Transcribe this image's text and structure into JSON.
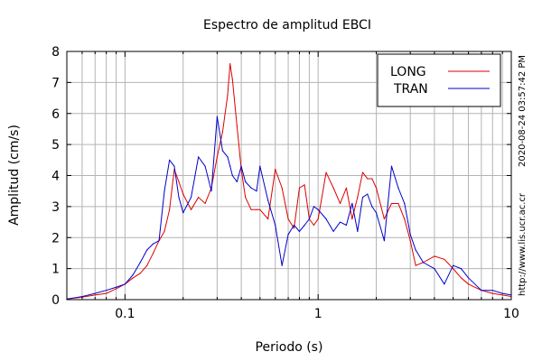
{
  "chart_data": {
    "type": "line",
    "title": "Espectro de amplitud EBCI",
    "xlabel": "Periodo (s)",
    "ylabel": "Amplitud (cm/s)",
    "x_scale": "log",
    "xlim": [
      0.05,
      10
    ],
    "ylim": [
      0,
      8
    ],
    "x_ticks": [
      {
        "value": 0.1,
        "label": "0.1"
      },
      {
        "value": 1,
        "label": "1"
      },
      {
        "value": 10,
        "label": "10"
      }
    ],
    "y_ticks": [
      {
        "value": 0,
        "label": "0"
      },
      {
        "value": 1,
        "label": "1"
      },
      {
        "value": 2,
        "label": "2"
      },
      {
        "value": 3,
        "label": "3"
      },
      {
        "value": 4,
        "label": "4"
      },
      {
        "value": 5,
        "label": "5"
      },
      {
        "value": 6,
        "label": "6"
      },
      {
        "value": 7,
        "label": "7"
      },
      {
        "value": 8,
        "label": "8"
      }
    ],
    "grid": true,
    "legend": "top-right",
    "series": [
      {
        "name": "LONG",
        "color": "#dd0000",
        "points": [
          [
            0.05,
            0.02
          ],
          [
            0.06,
            0.08
          ],
          [
            0.07,
            0.15
          ],
          [
            0.08,
            0.2
          ],
          [
            0.09,
            0.35
          ],
          [
            0.1,
            0.5
          ],
          [
            0.11,
            0.7
          ],
          [
            0.12,
            0.85
          ],
          [
            0.13,
            1.1
          ],
          [
            0.14,
            1.5
          ],
          [
            0.15,
            1.9
          ],
          [
            0.16,
            2.2
          ],
          [
            0.17,
            2.9
          ],
          [
            0.18,
            4.2
          ],
          [
            0.19,
            3.8
          ],
          [
            0.2,
            3.4
          ],
          [
            0.22,
            2.9
          ],
          [
            0.24,
            3.3
          ],
          [
            0.26,
            3.1
          ],
          [
            0.28,
            3.6
          ],
          [
            0.3,
            4.6
          ],
          [
            0.32,
            5.4
          ],
          [
            0.34,
            6.6
          ],
          [
            0.35,
            7.6
          ],
          [
            0.36,
            7.1
          ],
          [
            0.38,
            5.6
          ],
          [
            0.4,
            4.2
          ],
          [
            0.42,
            3.3
          ],
          [
            0.45,
            2.9
          ],
          [
            0.48,
            2.9
          ],
          [
            0.5,
            2.9
          ],
          [
            0.55,
            2.6
          ],
          [
            0.6,
            4.2
          ],
          [
            0.65,
            3.6
          ],
          [
            0.7,
            2.6
          ],
          [
            0.75,
            2.3
          ],
          [
            0.8,
            3.6
          ],
          [
            0.85,
            3.7
          ],
          [
            0.9,
            2.6
          ],
          [
            0.95,
            2.4
          ],
          [
            1.0,
            2.6
          ],
          [
            1.1,
            4.1
          ],
          [
            1.2,
            3.6
          ],
          [
            1.3,
            3.1
          ],
          [
            1.4,
            3.6
          ],
          [
            1.5,
            2.6
          ],
          [
            1.6,
            3.3
          ],
          [
            1.7,
            4.1
          ],
          [
            1.8,
            3.9
          ],
          [
            1.9,
            3.9
          ],
          [
            2.0,
            3.6
          ],
          [
            2.2,
            2.6
          ],
          [
            2.4,
            3.1
          ],
          [
            2.6,
            3.1
          ],
          [
            2.8,
            2.6
          ],
          [
            3.0,
            1.9
          ],
          [
            3.2,
            1.1
          ],
          [
            3.5,
            1.2
          ],
          [
            4.0,
            1.4
          ],
          [
            4.5,
            1.3
          ],
          [
            5.0,
            1.0
          ],
          [
            5.5,
            0.7
          ],
          [
            6.0,
            0.5
          ],
          [
            7.0,
            0.3
          ],
          [
            8.0,
            0.2
          ],
          [
            9.0,
            0.15
          ],
          [
            10.0,
            0.1
          ]
        ]
      },
      {
        "name": "TRAN",
        "color": "#0000cc",
        "points": [
          [
            0.05,
            0.02
          ],
          [
            0.06,
            0.1
          ],
          [
            0.07,
            0.2
          ],
          [
            0.08,
            0.3
          ],
          [
            0.09,
            0.4
          ],
          [
            0.1,
            0.5
          ],
          [
            0.11,
            0.8
          ],
          [
            0.12,
            1.2
          ],
          [
            0.13,
            1.6
          ],
          [
            0.14,
            1.8
          ],
          [
            0.15,
            1.9
          ],
          [
            0.16,
            3.5
          ],
          [
            0.17,
            4.5
          ],
          [
            0.18,
            4.3
          ],
          [
            0.19,
            3.3
          ],
          [
            0.2,
            2.8
          ],
          [
            0.22,
            3.3
          ],
          [
            0.24,
            4.6
          ],
          [
            0.26,
            4.3
          ],
          [
            0.28,
            3.5
          ],
          [
            0.3,
            5.9
          ],
          [
            0.32,
            4.8
          ],
          [
            0.34,
            4.6
          ],
          [
            0.35,
            4.3
          ],
          [
            0.36,
            4.0
          ],
          [
            0.38,
            3.8
          ],
          [
            0.4,
            4.3
          ],
          [
            0.42,
            3.8
          ],
          [
            0.45,
            3.6
          ],
          [
            0.48,
            3.5
          ],
          [
            0.5,
            4.3
          ],
          [
            0.55,
            3.2
          ],
          [
            0.6,
            2.4
          ],
          [
            0.65,
            1.1
          ],
          [
            0.7,
            2.1
          ],
          [
            0.75,
            2.4
          ],
          [
            0.8,
            2.2
          ],
          [
            0.85,
            2.4
          ],
          [
            0.9,
            2.6
          ],
          [
            0.95,
            3.0
          ],
          [
            1.0,
            2.9
          ],
          [
            1.1,
            2.6
          ],
          [
            1.2,
            2.2
          ],
          [
            1.3,
            2.5
          ],
          [
            1.4,
            2.4
          ],
          [
            1.5,
            3.1
          ],
          [
            1.6,
            2.2
          ],
          [
            1.7,
            3.3
          ],
          [
            1.8,
            3.4
          ],
          [
            1.9,
            3.0
          ],
          [
            2.0,
            2.8
          ],
          [
            2.2,
            1.9
          ],
          [
            2.4,
            4.3
          ],
          [
            2.6,
            3.6
          ],
          [
            2.8,
            3.1
          ],
          [
            3.0,
            2.1
          ],
          [
            3.2,
            1.6
          ],
          [
            3.5,
            1.2
          ],
          [
            4.0,
            1.0
          ],
          [
            4.5,
            0.5
          ],
          [
            5.0,
            1.1
          ],
          [
            5.5,
            1.0
          ],
          [
            6.0,
            0.7
          ],
          [
            7.0,
            0.3
          ],
          [
            8.0,
            0.3
          ],
          [
            9.0,
            0.2
          ],
          [
            10.0,
            0.15
          ]
        ]
      }
    ],
    "side_annotations": [
      "http://www.lis.ucr.ac.cr",
      "2020-08-24 03:57:42 PM"
    ]
  }
}
